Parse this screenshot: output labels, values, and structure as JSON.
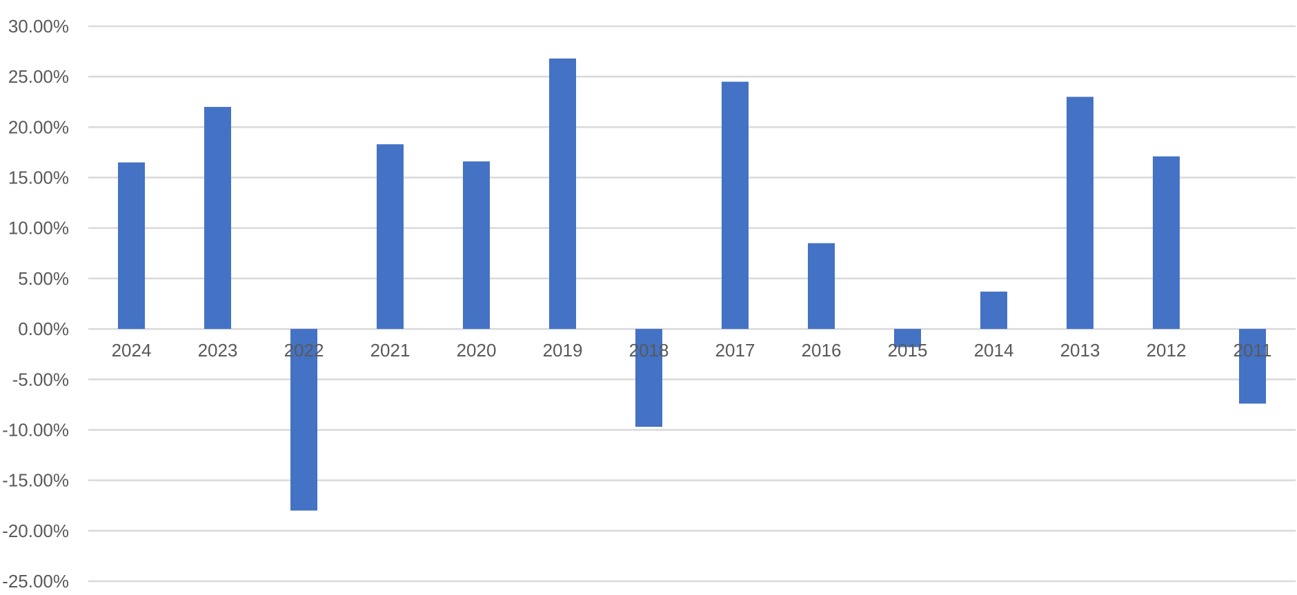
{
  "chart_data": {
    "type": "bar",
    "title": "",
    "xlabel": "",
    "ylabel": "",
    "categories": [
      "2024",
      "2023",
      "2022",
      "2021",
      "2020",
      "2019",
      "2018",
      "2017",
      "2016",
      "2015",
      "2014",
      "2013",
      "2012",
      "2011"
    ],
    "series": [
      {
        "name": "",
        "values": [
          0.165,
          0.22,
          -0.18,
          0.183,
          0.166,
          0.268,
          -0.097,
          0.245,
          0.085,
          -0.018,
          0.037,
          0.23,
          0.171,
          -0.074
        ],
        "color": "#4472c4"
      }
    ],
    "ylim": [
      -0.25,
      0.3
    ],
    "ytick_values": [
      0.3,
      0.25,
      0.2,
      0.15,
      0.1,
      0.05,
      0.0,
      -0.05,
      -0.1,
      -0.15,
      -0.2,
      -0.25
    ],
    "ytick_labels": [
      "30.00%",
      "25.00%",
      "20.00%",
      "15.00%",
      "10.00%",
      "5.00%",
      "0.00%",
      "-5.00%",
      "-10.00%",
      "-15.00%",
      "-20.00%",
      "-25.00%"
    ],
    "grid": true,
    "legend": "none",
    "colors": {
      "bar": "#4472c4",
      "grid": "#d9d9d9",
      "tick_text": "#595959"
    }
  }
}
